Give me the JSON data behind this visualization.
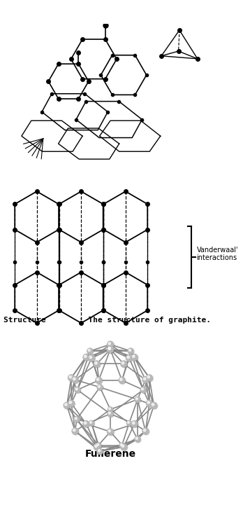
{
  "bg_color": "#ffffff",
  "graphite_label": "Structure       : The structure of graphite.",
  "fullerene_label": "Fullerene",
  "vanderwaal_label": "Vanderwaal'\ninteractions",
  "node_color": "#111111",
  "line_color": "#111111",
  "bond_color": "#888888",
  "atom_color": "#b8b8b8"
}
